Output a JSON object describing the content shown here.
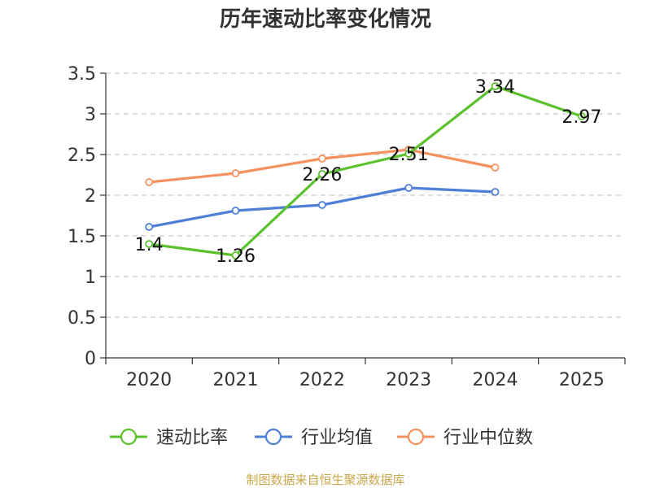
{
  "chart_data": {
    "type": "line",
    "title": "历年速动比率变化情况",
    "categories": [
      "2020",
      "2021",
      "2022",
      "2023",
      "2024",
      "2025"
    ],
    "y_ticks": [
      "0",
      "0.5",
      "1",
      "1.5",
      "2",
      "2.5",
      "3",
      "3.5"
    ],
    "ylim": [
      0,
      3.5
    ],
    "grid": true,
    "legend_position": "bottom",
    "series": [
      {
        "name": "速动比率",
        "color": "#5bc12c",
        "values": [
          1.4,
          1.26,
          2.26,
          2.51,
          3.34,
          2.97
        ],
        "labels": [
          "1.4",
          "1.26",
          "2.26",
          "2.51",
          "3.34",
          "2.97"
        ],
        "show_labels": true
      },
      {
        "name": "行业均值",
        "color": "#4f7fd6",
        "values": [
          1.61,
          1.81,
          1.88,
          2.09,
          2.04,
          null
        ],
        "show_labels": false
      },
      {
        "name": "行业中位数",
        "color": "#f4915f",
        "values": [
          2.16,
          2.27,
          2.45,
          2.56,
          2.34,
          null
        ],
        "show_labels": false
      }
    ],
    "source": "制图数据来自恒生聚源数据库"
  }
}
